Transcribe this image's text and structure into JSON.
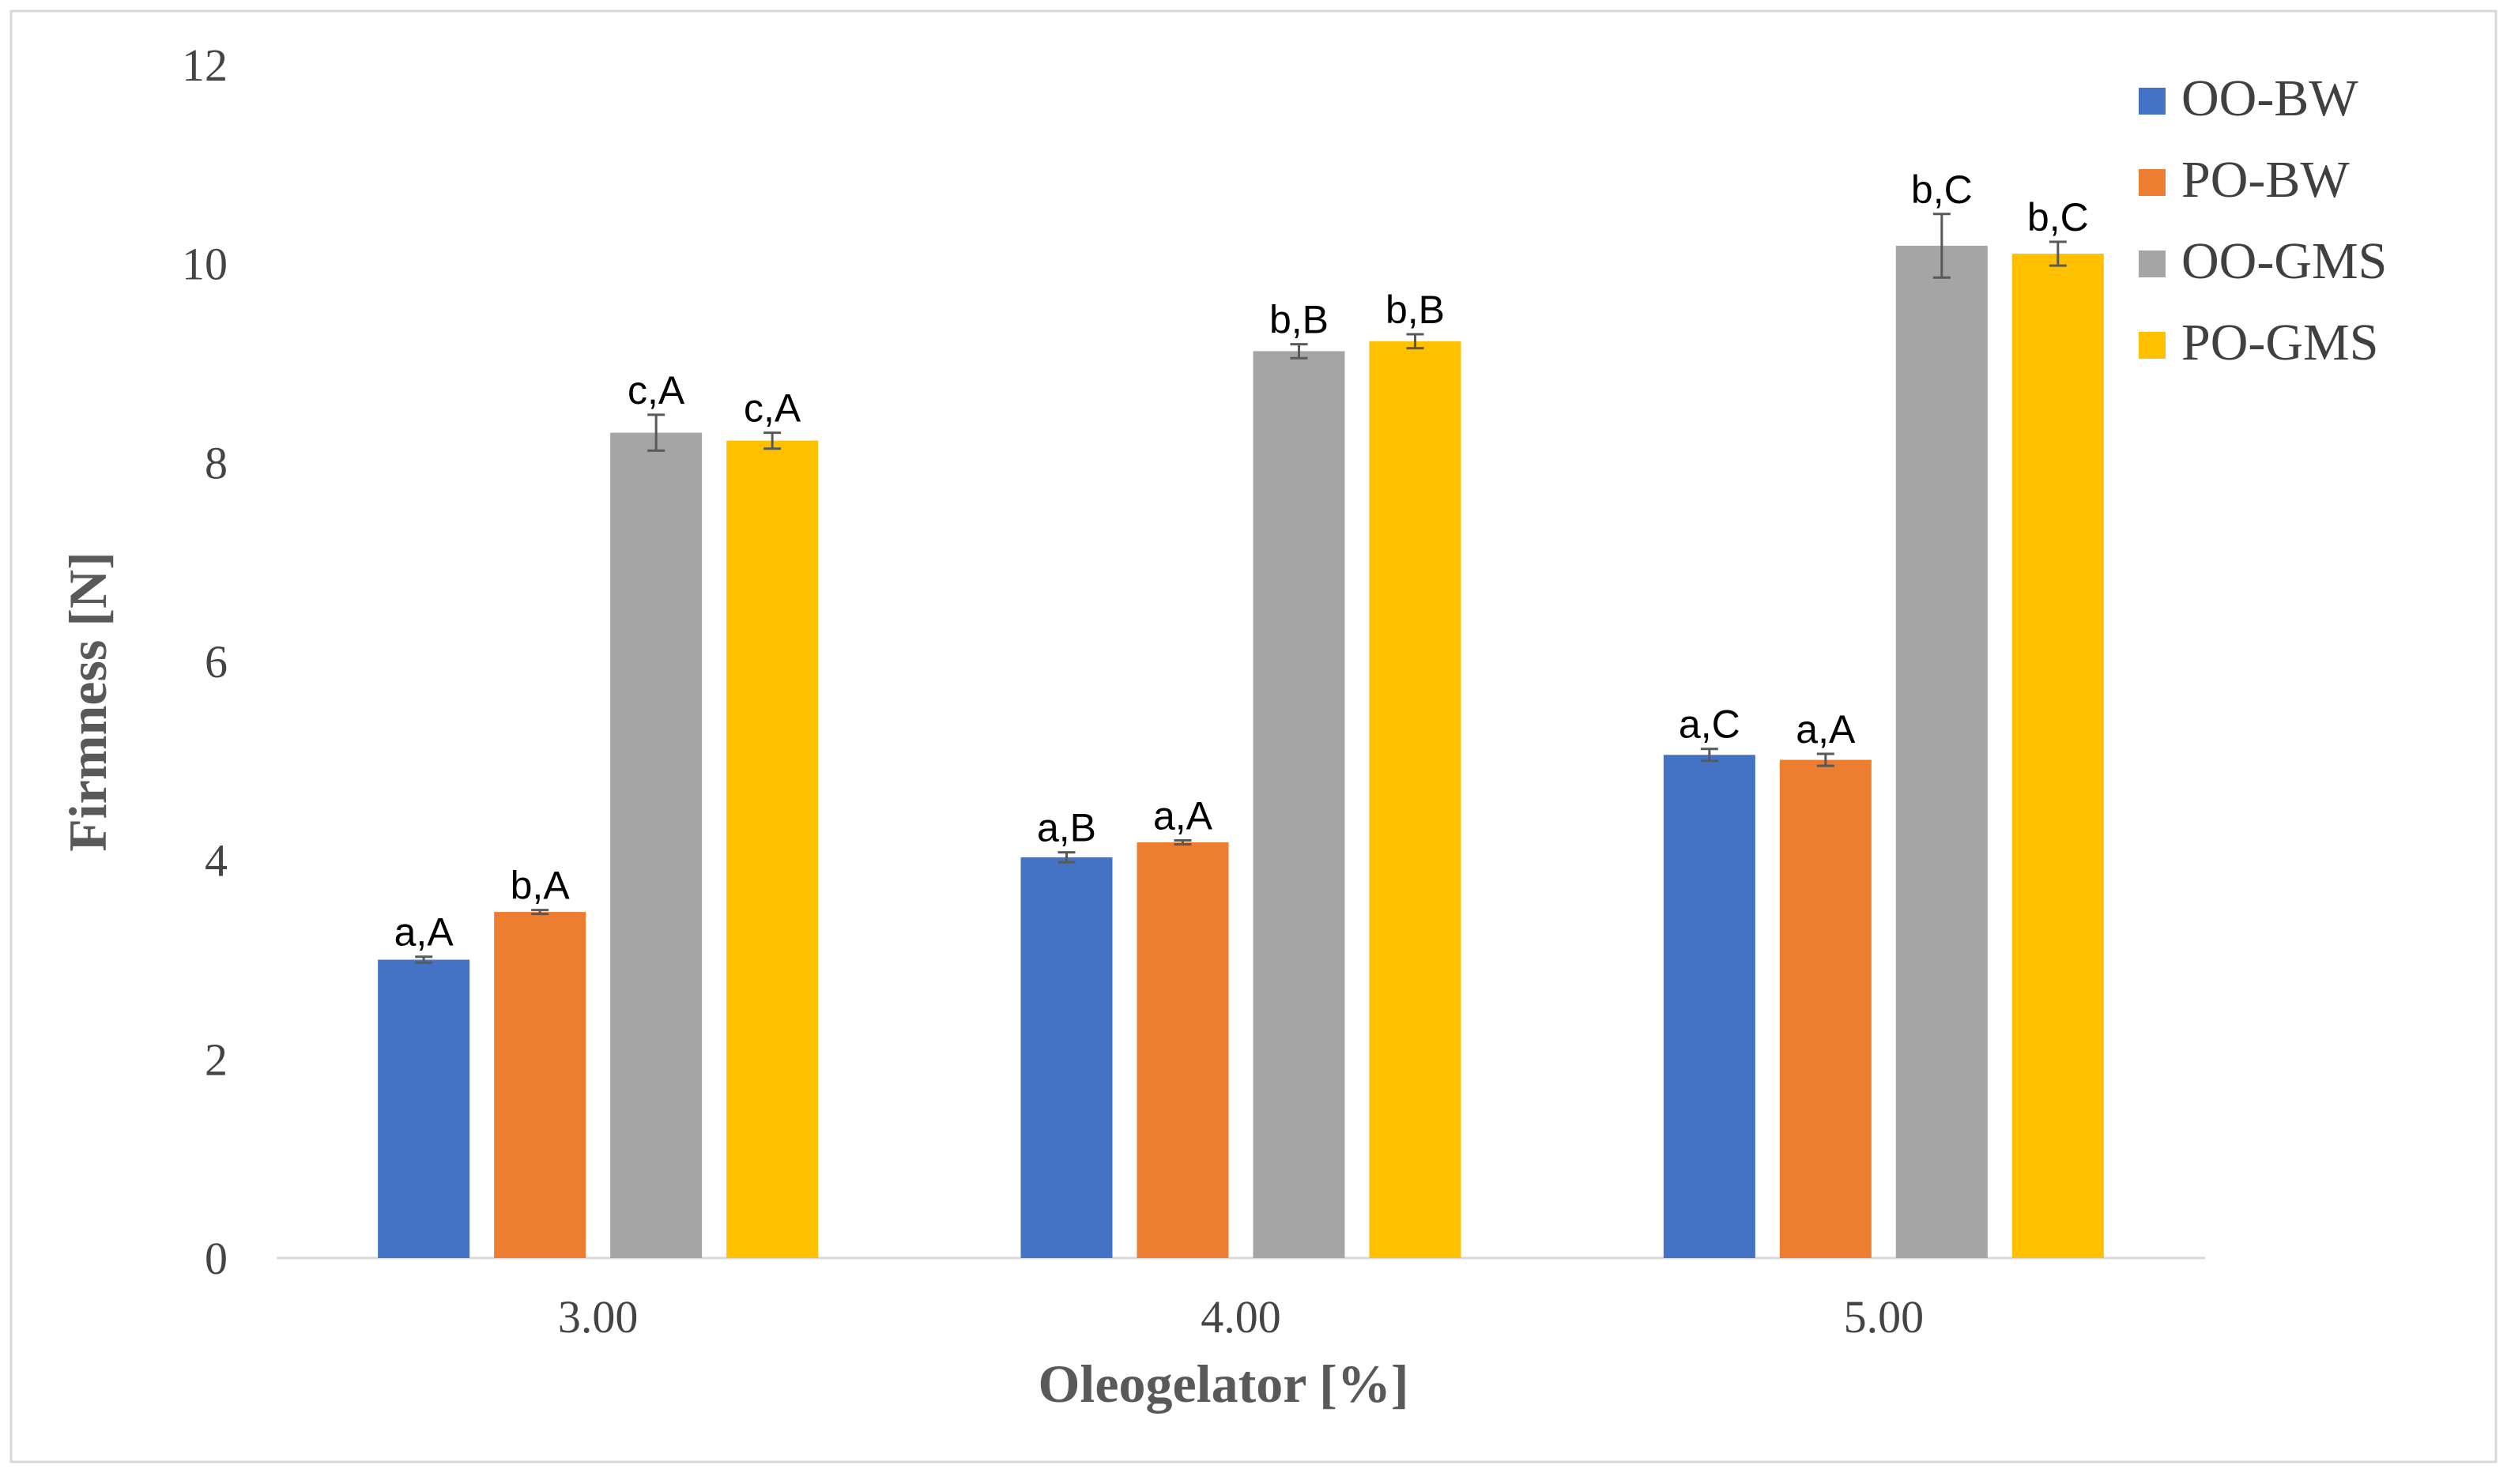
{
  "chart_data": {
    "type": "bar",
    "title": "",
    "xlabel": "Oleogelator [%]",
    "ylabel": "Firmness [N]",
    "ylim": [
      0,
      12
    ],
    "yticks": [
      "0",
      "2",
      "4",
      "6",
      "8",
      "10",
      "12"
    ],
    "categories": [
      "3.00",
      "4.00",
      "5.00"
    ],
    "legend_position": "top-right",
    "series": [
      {
        "name": "OO-BW",
        "color": "#4472C4",
        "values": [
          3.0,
          4.03,
          5.06
        ],
        "errors": [
          0.03,
          0.05,
          0.06
        ],
        "labels": [
          "a,A",
          "a,B",
          "a,C"
        ]
      },
      {
        "name": "PO-BW",
        "color": "#ED7D31",
        "values": [
          3.48,
          4.18,
          5.01
        ],
        "errors": [
          0.02,
          0.02,
          0.06
        ],
        "labels": [
          "b,A",
          "a,A",
          "a,A"
        ]
      },
      {
        "name": "OO-GMS",
        "color": "#A5A5A5",
        "values": [
          8.3,
          9.12,
          10.18
        ],
        "errors": [
          0.18,
          0.07,
          0.32
        ],
        "labels": [
          "c,A",
          "b,B",
          "b,C"
        ]
      },
      {
        "name": "PO-GMS",
        "color": "#FFC000",
        "values": [
          8.22,
          9.22,
          10.1
        ],
        "errors": [
          0.08,
          0.07,
          0.12
        ],
        "labels": [
          "c,A",
          "b,B",
          "b,C"
        ]
      }
    ]
  }
}
